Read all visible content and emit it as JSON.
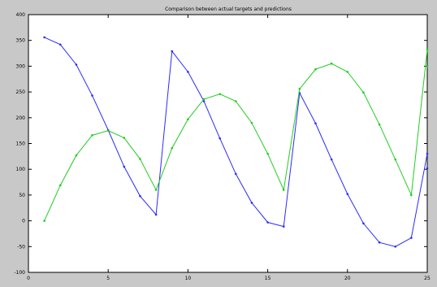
{
  "window": {
    "background_color": "#c8c8c8"
  },
  "chart_data": {
    "type": "line",
    "title": "Comparison between actual targets and predictions",
    "xlabel": "",
    "ylabel": "",
    "xlim": [
      0,
      25
    ],
    "ylim": [
      -100,
      400
    ],
    "grid": false,
    "legend": "none",
    "x_ticks": [
      0,
      5,
      10,
      15,
      20,
      25
    ],
    "y_ticks": [
      -100,
      -50,
      0,
      50,
      100,
      150,
      200,
      250,
      300,
      350,
      400
    ],
    "x": [
      1,
      2,
      3,
      4,
      5,
      6,
      7,
      8,
      9,
      10,
      11,
      12,
      13,
      14,
      15,
      16,
      17,
      18,
      19,
      20,
      21,
      22,
      23,
      24,
      25
    ],
    "series": [
      {
        "color": "#2a2aff",
        "marker": "dot",
        "values": [
          356,
          342,
          303,
          243,
          176,
          105,
          48,
          12,
          329,
          289,
          232,
          160,
          91,
          35,
          -3,
          -11,
          248,
          189,
          119,
          52,
          -5,
          -42,
          -50,
          -33,
          130
        ]
      },
      {
        "color": "#22cc22",
        "marker": "dot",
        "values": [
          0,
          69,
          127,
          166,
          175,
          161,
          120,
          60,
          141,
          197,
          236,
          246,
          232,
          190,
          130,
          60,
          256,
          294,
          305,
          289,
          249,
          187,
          119,
          50,
          332
        ]
      }
    ],
    "extra_points": [
      {
        "x": 25,
        "y": 102,
        "color": "#2a2aff"
      },
      {
        "x": 25,
        "y": 299,
        "color": "#22cc22"
      }
    ]
  }
}
